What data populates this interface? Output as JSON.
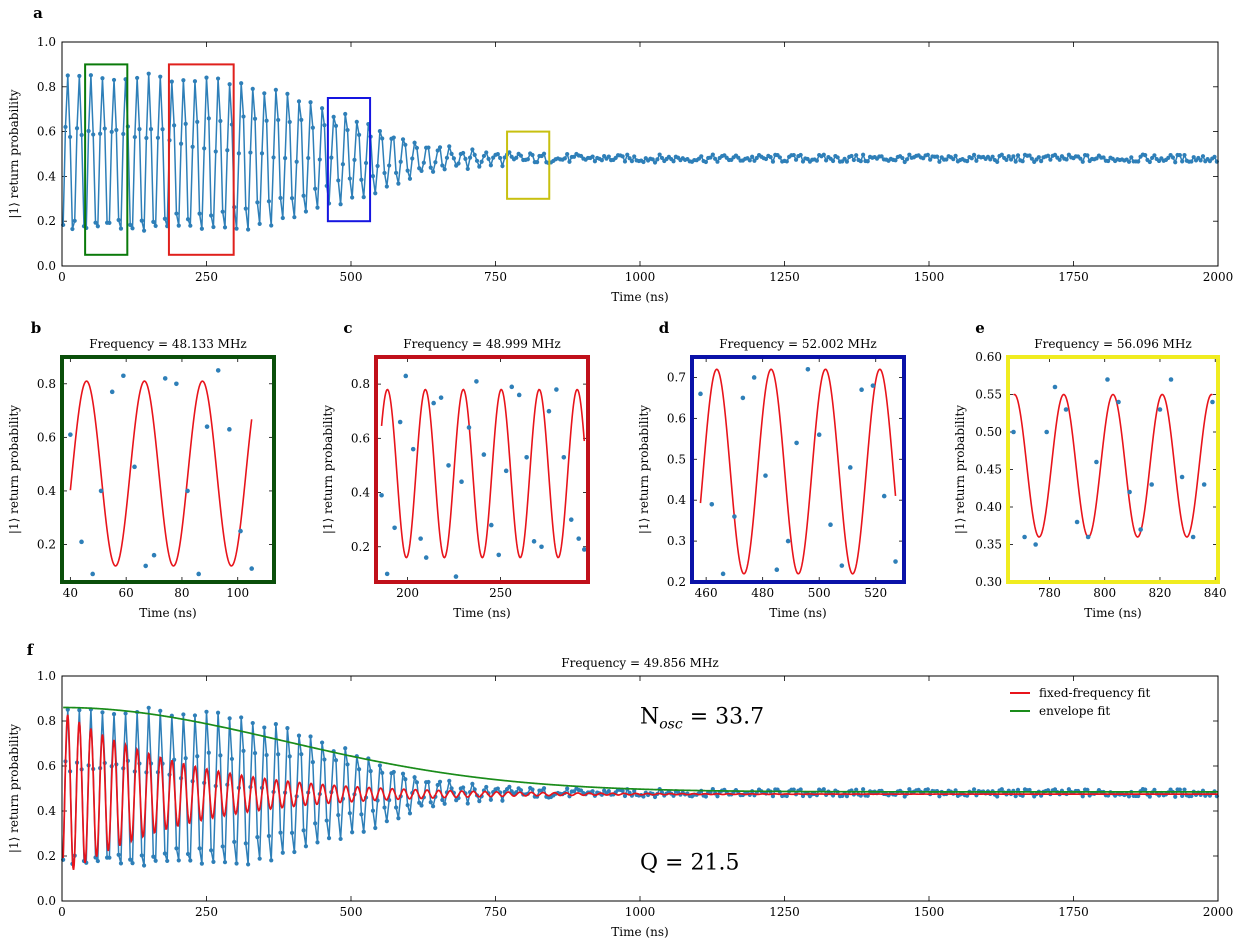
{
  "colors": {
    "data": "#2e7fb8",
    "fit": "#e8141b",
    "envelope": "#1a8c1a",
    "box_b": "#0a7a0a",
    "box_c": "#e0201c",
    "box_d": "#1515e0",
    "box_e": "#c8c010",
    "frame_b": "#0a4f0a",
    "frame_c": "#c0101a",
    "frame_d": "#0a12a8",
    "frame_e": "#f0ec20"
  },
  "chart_data": [
    {
      "id": "a",
      "panel_label": "a",
      "type": "line",
      "title": "",
      "xlabel": "Time (ns)",
      "ylabel": "|1⟩ return probability",
      "xlim": [
        0,
        2000
      ],
      "ylim": [
        0.0,
        1.0
      ],
      "xticks": [
        0,
        250,
        500,
        750,
        1000,
        1250,
        1500,
        1750,
        2000
      ],
      "yticks": [
        0.0,
        0.2,
        0.4,
        0.6,
        0.8,
        1.0
      ],
      "grid": false,
      "series": [
        {
          "kind": "damped-oscillation-samples",
          "t_start_ns": 2,
          "sample_step_ns": 4,
          "t_end_ns": 2000,
          "frequency_MHz": 49.856,
          "baseline": 0.48,
          "initial_amplitude": 0.37,
          "envelope_decay_center_ns": 500,
          "envelope_decay_width_ns": 260,
          "phase_rad": 3.2
        }
      ],
      "highlight_boxes": [
        {
          "color_key": "box_b",
          "x": [
            40,
            113
          ],
          "y": [
            0.05,
            0.9
          ]
        },
        {
          "color_key": "box_c",
          "x": [
            185,
            297
          ],
          "y": [
            0.05,
            0.9
          ]
        },
        {
          "color_key": "box_d",
          "x": [
            460,
            533
          ],
          "y": [
            0.2,
            0.75
          ]
        },
        {
          "color_key": "box_e",
          "x": [
            770,
            843
          ],
          "y": [
            0.3,
            0.6
          ]
        }
      ]
    },
    {
      "id": "b",
      "panel_label": "b",
      "type": "scatter",
      "title": "Frequency = 48.133 MHz",
      "xlabel": "Time (ns)",
      "ylabel": "|1⟩ return probability",
      "frame_color_key": "frame_b",
      "xlim": [
        37,
        113
      ],
      "ylim": [
        0.06,
        0.9
      ],
      "xticks": [
        40,
        60,
        80,
        100
      ],
      "yticks": [
        0.2,
        0.4,
        0.6,
        0.8
      ],
      "points": [
        [
          40,
          0.61
        ],
        [
          44,
          0.21
        ],
        [
          48,
          0.09
        ],
        [
          51,
          0.4
        ],
        [
          55,
          0.77
        ],
        [
          59,
          0.83
        ],
        [
          63,
          0.49
        ],
        [
          67,
          0.12
        ],
        [
          70,
          0.16
        ],
        [
          74,
          0.82
        ],
        [
          78,
          0.8
        ],
        [
          82,
          0.4
        ],
        [
          86,
          0.09
        ],
        [
          89,
          0.64
        ],
        [
          93,
          0.85
        ],
        [
          97,
          0.63
        ],
        [
          101,
          0.25
        ],
        [
          105,
          0.11
        ]
      ],
      "fit": {
        "frequency_MHz": 48.133,
        "center": 0.465,
        "amplitude": 0.345,
        "phase_rad": 5.0
      }
    },
    {
      "id": "c",
      "panel_label": "c",
      "type": "scatter",
      "title": "Frequency = 48.999 MHz",
      "xlabel": "Time (ns)",
      "ylabel": "|1⟩ return probability",
      "frame_color_key": "frame_c",
      "xlim": [
        183,
        297
      ],
      "ylim": [
        0.07,
        0.9
      ],
      "xticks": [
        200,
        250
      ],
      "yticks": [
        0.2,
        0.4,
        0.6,
        0.8
      ],
      "points": [
        [
          186,
          0.39
        ],
        [
          189,
          0.1
        ],
        [
          193,
          0.27
        ],
        [
          196,
          0.66
        ],
        [
          199,
          0.83
        ],
        [
          203,
          0.56
        ],
        [
          207,
          0.23
        ],
        [
          210,
          0.16
        ],
        [
          214,
          0.73
        ],
        [
          218,
          0.75
        ],
        [
          222,
          0.5
        ],
        [
          226,
          0.09
        ],
        [
          229,
          0.44
        ],
        [
          233,
          0.64
        ],
        [
          237,
          0.81
        ],
        [
          241,
          0.54
        ],
        [
          245,
          0.28
        ],
        [
          249,
          0.17
        ],
        [
          253,
          0.48
        ],
        [
          256,
          0.79
        ],
        [
          260,
          0.76
        ],
        [
          264,
          0.53
        ],
        [
          268,
          0.22
        ],
        [
          272,
          0.2
        ],
        [
          276,
          0.7
        ],
        [
          280,
          0.78
        ],
        [
          284,
          0.53
        ],
        [
          288,
          0.3
        ],
        [
          292,
          0.23
        ],
        [
          295,
          0.19
        ]
      ],
      "fit": {
        "frequency_MHz": 48.999,
        "center": 0.47,
        "amplitude": 0.31,
        "phase_rad": 4.6
      }
    },
    {
      "id": "d",
      "panel_label": "d",
      "type": "scatter",
      "title": "Frequency = 52.002 MHz",
      "xlabel": "Time (ns)",
      "ylabel": "|1⟩ return probability",
      "frame_color_key": "frame_d",
      "xlim": [
        455,
        530
      ],
      "ylim": [
        0.2,
        0.75
      ],
      "xticks": [
        460,
        480,
        500,
        520
      ],
      "yticks": [
        0.2,
        0.3,
        0.4,
        0.5,
        0.6,
        0.7
      ],
      "points": [
        [
          458,
          0.66
        ],
        [
          462,
          0.39
        ],
        [
          466,
          0.22
        ],
        [
          470,
          0.36
        ],
        [
          473,
          0.65
        ],
        [
          477,
          0.7
        ],
        [
          481,
          0.46
        ],
        [
          485,
          0.23
        ],
        [
          489,
          0.3
        ],
        [
          492,
          0.54
        ],
        [
          496,
          0.72
        ],
        [
          500,
          0.56
        ],
        [
          504,
          0.34
        ],
        [
          508,
          0.24
        ],
        [
          511,
          0.48
        ],
        [
          515,
          0.67
        ],
        [
          519,
          0.68
        ],
        [
          523,
          0.41
        ],
        [
          527,
          0.25
        ]
      ],
      "fit": {
        "frequency_MHz": 52.002,
        "center": 0.47,
        "amplitude": 0.25,
        "phase_rad": 5.55
      }
    },
    {
      "id": "e",
      "panel_label": "e",
      "type": "scatter",
      "title": "Frequency = 56.096 MHz",
      "xlabel": "Time (ns)",
      "ylabel": "|1⟩ return probability",
      "frame_color_key": "frame_e",
      "xlim": [
        765,
        841
      ],
      "ylim": [
        0.3,
        0.6
      ],
      "xticks": [
        780,
        800,
        820,
        840
      ],
      "yticks": [
        0.3,
        0.35,
        0.4,
        0.45,
        0.5,
        0.55,
        0.6
      ],
      "points": [
        [
          767,
          0.5
        ],
        [
          771,
          0.36
        ],
        [
          775,
          0.35
        ],
        [
          779,
          0.5
        ],
        [
          782,
          0.56
        ],
        [
          786,
          0.53
        ],
        [
          790,
          0.38
        ],
        [
          794,
          0.36
        ],
        [
          797,
          0.46
        ],
        [
          801,
          0.57
        ],
        [
          805,
          0.54
        ],
        [
          809,
          0.42
        ],
        [
          813,
          0.37
        ],
        [
          817,
          0.43
        ],
        [
          820,
          0.53
        ],
        [
          824,
          0.57
        ],
        [
          828,
          0.44
        ],
        [
          832,
          0.36
        ],
        [
          836,
          0.43
        ],
        [
          839,
          0.54
        ]
      ],
      "fit": {
        "frequency_MHz": 56.096,
        "center": 0.455,
        "amplitude": 0.095,
        "phase_rad": 6.0
      }
    },
    {
      "id": "f",
      "panel_label": "f",
      "type": "line",
      "title": "Frequency = 49.856 MHz",
      "xlabel": "Time (ns)",
      "ylabel": "|1⟩ return probability",
      "xlim": [
        0,
        2000
      ],
      "ylim": [
        0.0,
        1.0
      ],
      "xticks": [
        0,
        250,
        500,
        750,
        1000,
        1250,
        1500,
        1750,
        2000
      ],
      "yticks": [
        0.0,
        0.2,
        0.4,
        0.6,
        0.8,
        1.0
      ],
      "grid": false,
      "legend_position": "top-right",
      "series": [
        {
          "name": "",
          "kind": "data-same-as-panel-a",
          "color_key": "data"
        },
        {
          "name": "fixed-frequency fit",
          "kind": "damped-cosine",
          "color_key": "fit",
          "frequency_MHz": 49.856,
          "baseline": 0.475,
          "amplitude": 0.37,
          "decay_ns": 210,
          "phase_rad": 3.2
        },
        {
          "name": "envelope fit",
          "kind": "gaussian-envelope",
          "color_key": "envelope",
          "baseline": 0.485,
          "amplitude": 0.375,
          "width_ns": 540
        }
      ],
      "annotations": [
        {
          "text": "N",
          "sub": "osc",
          "rest": " = 33.7",
          "x": 1000,
          "y": 0.79
        },
        {
          "text": "Q = 21.5",
          "x": 1000,
          "y": 0.14
        }
      ]
    }
  ]
}
